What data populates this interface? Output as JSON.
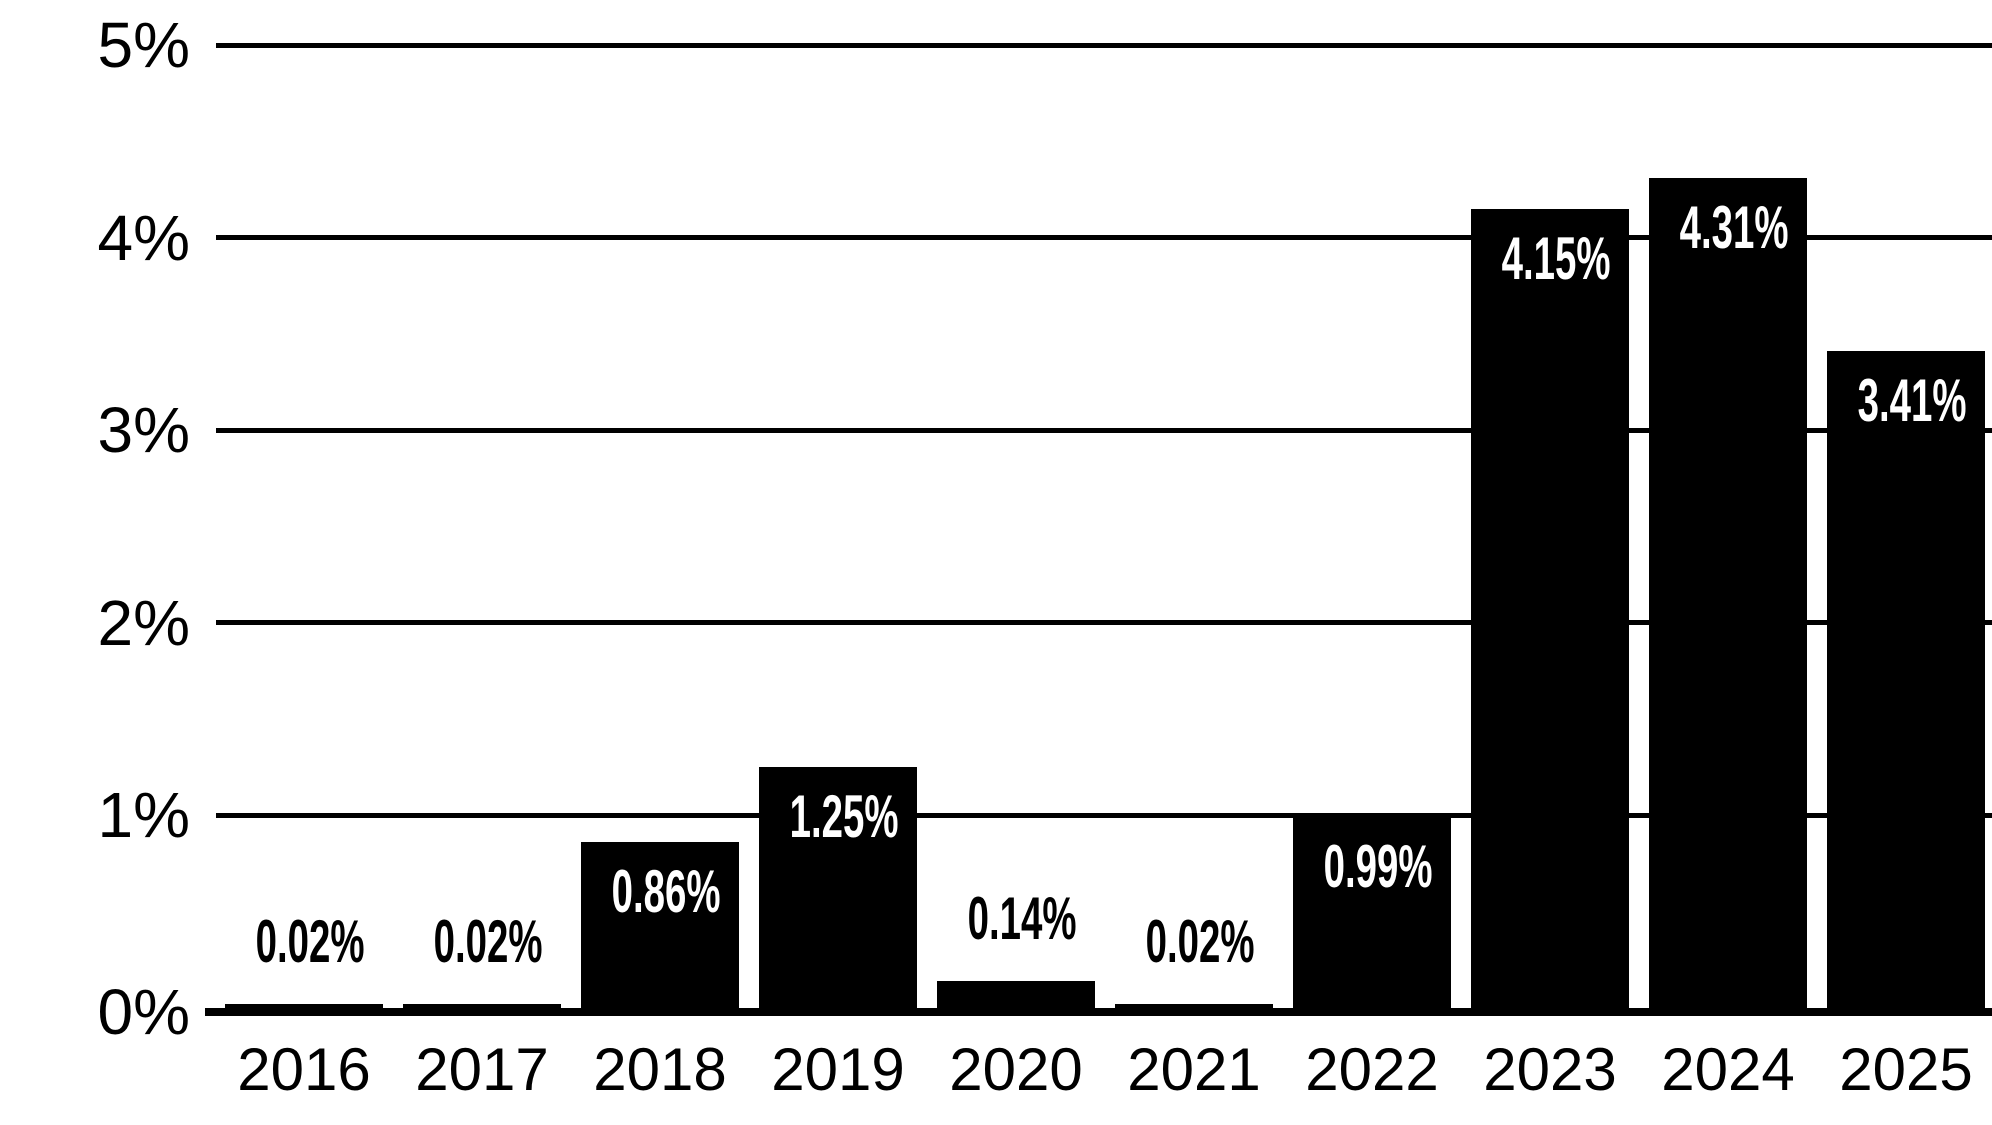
{
  "chart_data": {
    "type": "bar",
    "title": "",
    "xlabel": "",
    "ylabel": "",
    "categories": [
      "2016",
      "2017",
      "2018",
      "2019",
      "2020",
      "2021",
      "2022",
      "2023",
      "2024",
      "2025"
    ],
    "values": [
      0.02,
      0.02,
      0.86,
      1.25,
      0.14,
      0.02,
      0.99,
      4.15,
      4.31,
      3.41
    ],
    "bar_labels": [
      "0.02%",
      "0.02%",
      "0.86%",
      "1.25%",
      "0.14%",
      "0.02%",
      "0.99%",
      "4.15%",
      "4.31%",
      "3.41%"
    ],
    "bar_label_placement": [
      "above",
      "above",
      "inside",
      "inside",
      "above",
      "above",
      "inside",
      "inside",
      "inside",
      "inside"
    ],
    "ylim": [
      0,
      5
    ],
    "yticks": [
      {
        "value": 0,
        "label": "0%"
      },
      {
        "value": 1,
        "label": "1%"
      },
      {
        "value": 2,
        "label": "2%"
      },
      {
        "value": 3,
        "label": "3%"
      },
      {
        "value": 4,
        "label": "4%"
      },
      {
        "value": 5,
        "label": "5%"
      }
    ],
    "grid": "horizontal",
    "legend": "none",
    "colors": {
      "background": "#ffffff",
      "bar": "#000000",
      "gridline": "#000000",
      "axis_text": "#000000",
      "label_inside": "#ffffff",
      "label_above": "#000000"
    }
  }
}
